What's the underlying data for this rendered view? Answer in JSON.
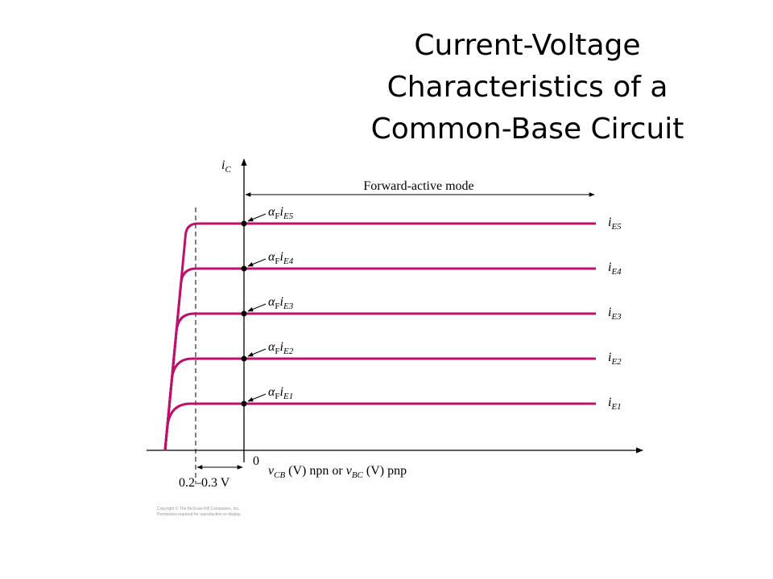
{
  "title": [
    "Current-Voltage",
    "Characteristics of a",
    "Common-Base Circuit"
  ],
  "y_axis_label": {
    "var": "i",
    "sub": "C"
  },
  "region_label": "Forward-active mode",
  "origin_label": "0",
  "x_axis_label": {
    "var1": "v",
    "sub1": "CB",
    "text1": " (V) npn or ",
    "var2": "v",
    "sub2": "BC",
    "text2": " (V) pnp"
  },
  "threshold_label": "0.2–0.3 V",
  "curves": [
    {
      "marker_alpha": "α",
      "marker_alpha_sub": "F",
      "marker_var": "i",
      "marker_sub": "E5",
      "label_var": "i",
      "label_sub": "E5"
    },
    {
      "marker_alpha": "α",
      "marker_alpha_sub": "F",
      "marker_var": "i",
      "marker_sub": "E4",
      "label_var": "i",
      "label_sub": "E4"
    },
    {
      "marker_alpha": "α",
      "marker_alpha_sub": "F",
      "marker_var": "i",
      "marker_sub": "E3",
      "label_var": "i",
      "label_sub": "E3"
    },
    {
      "marker_alpha": "α",
      "marker_alpha_sub": "F",
      "marker_var": "i",
      "marker_sub": "E2",
      "label_var": "i",
      "label_sub": "E2"
    },
    {
      "marker_alpha": "α",
      "marker_alpha_sub": "F",
      "marker_var": "i",
      "marker_sub": "E1",
      "label_var": "i",
      "label_sub": "E1"
    }
  ],
  "copyright": [
    "Copyright © The McGraw-Hill Companies, Inc.",
    "Permission required for reproduction or display."
  ]
}
